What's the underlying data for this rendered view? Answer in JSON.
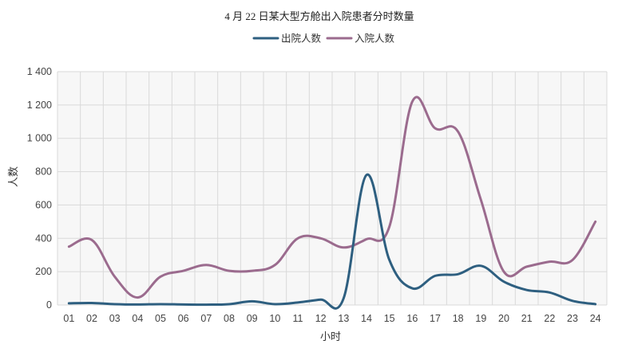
{
  "chart_data": {
    "type": "line",
    "title": "4 月 22 日某大型方舱出入院患者分时数量",
    "xlabel": "小时",
    "ylabel": "人数",
    "ylim": [
      0,
      1400
    ],
    "yticks": [
      0,
      200,
      400,
      600,
      800,
      1000,
      1200,
      1400
    ],
    "ytick_labels": [
      "0",
      "200",
      "400",
      "600",
      "800",
      "1 000",
      "1 200",
      "1 400"
    ],
    "legend_position": "top-center",
    "grid": true,
    "categories": [
      "01",
      "02",
      "03",
      "04",
      "05",
      "06",
      "07",
      "08",
      "09",
      "10",
      "11",
      "12",
      "13",
      "14",
      "15",
      "16",
      "17",
      "18",
      "19",
      "20",
      "21",
      "22",
      "23",
      "24"
    ],
    "series": [
      {
        "name": "出院人数",
        "color": "#2e5f80",
        "values": [
          10,
          12,
          5,
          3,
          5,
          3,
          2,
          5,
          22,
          5,
          15,
          32,
          40,
          780,
          270,
          100,
          175,
          185,
          235,
          140,
          90,
          75,
          25,
          5
        ]
      },
      {
        "name": "入院人数",
        "color": "#9b6b8e",
        "values": [
          350,
          390,
          170,
          45,
          170,
          205,
          240,
          205,
          205,
          240,
          400,
          400,
          345,
          395,
          470,
          1220,
          1060,
          1040,
          630,
          200,
          230,
          260,
          270,
          500
        ]
      }
    ]
  }
}
